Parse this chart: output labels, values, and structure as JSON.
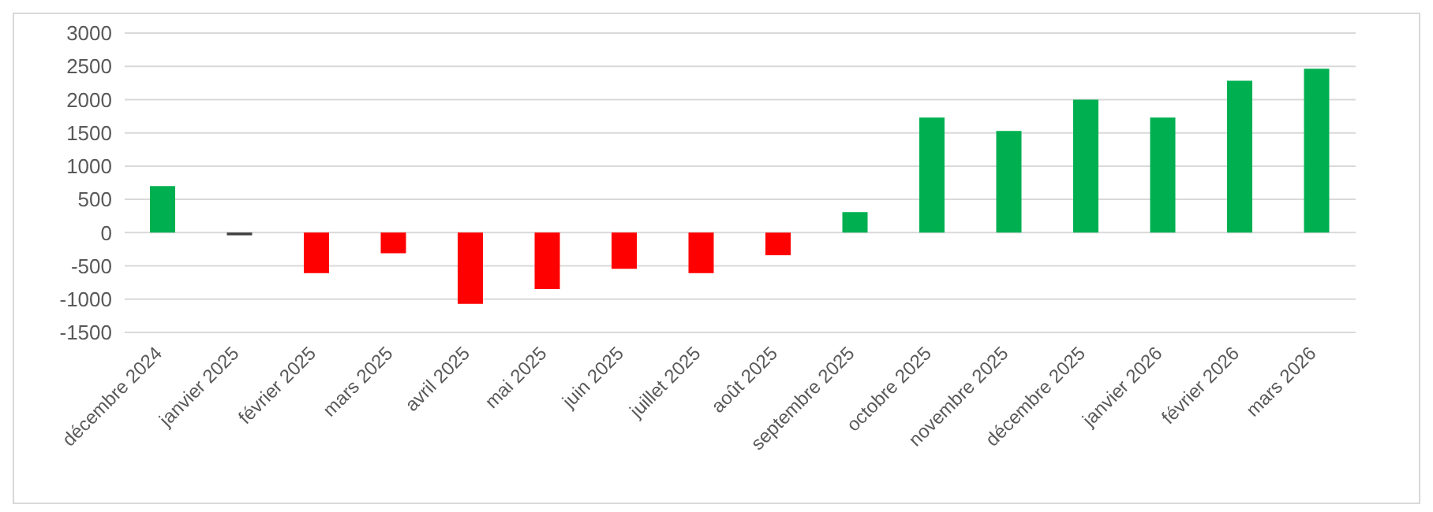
{
  "chart_data": {
    "type": "bar",
    "categories": [
      "décembre 2024",
      "janvier 2025",
      "février 2025",
      "mars 2025",
      "avril 2025",
      "mai 2025",
      "juin 2025",
      "juillet 2025",
      "août 2025",
      "septembre 2025",
      "octobre 2025",
      "novembre 2025",
      "décembre 2025",
      "janvier 2026",
      "février 2026",
      "mars 2026"
    ],
    "values": [
      700,
      -40,
      -610,
      -310,
      -1070,
      -850,
      -545,
      -610,
      -340,
      310,
      1730,
      1530,
      2000,
      1730,
      2285,
      2465
    ],
    "colors": [
      "#00b050",
      "#404040",
      "#ff0000",
      "#ff0000",
      "#ff0000",
      "#ff0000",
      "#ff0000",
      "#ff0000",
      "#ff0000",
      "#00b050",
      "#00b050",
      "#00b050",
      "#00b050",
      "#00b050",
      "#00b050",
      "#00b050"
    ],
    "ylim": [
      -1500,
      3000
    ],
    "yticks": [
      -1500,
      -1000,
      -500,
      0,
      500,
      1000,
      1500,
      2000,
      2500,
      3000
    ],
    "grid": "y",
    "legend": false
  }
}
